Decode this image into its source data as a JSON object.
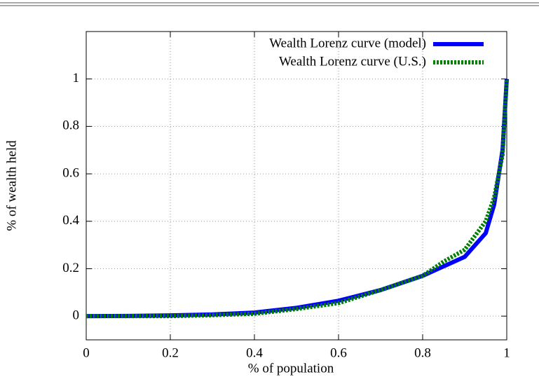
{
  "chart_data": {
    "type": "line",
    "x": [
      0,
      0.1,
      0.2,
      0.3,
      0.4,
      0.5,
      0.6,
      0.7,
      0.8,
      0.85,
      0.9,
      0.95,
      0.97,
      0.99,
      1
    ],
    "series": [
      {
        "name": "Wealth Lorenz curve (model)",
        "color": "#0000ff",
        "style": "solid",
        "values": [
          0,
          0.001,
          0.003,
          0.007,
          0.015,
          0.035,
          0.065,
          0.11,
          0.17,
          0.21,
          0.25,
          0.35,
          0.47,
          0.7,
          1
        ]
      },
      {
        "name": "Wealth Lorenz curve (U.S.)",
        "color": "#008000",
        "style": "dotted",
        "values": [
          0,
          0,
          0,
          0.004,
          0.01,
          0.03,
          0.055,
          0.11,
          0.17,
          0.23,
          0.28,
          0.4,
          0.5,
          0.68,
          1
        ]
      }
    ],
    "xlabel": "% of population",
    "ylabel": "% of wealth held",
    "xlim": [
      0,
      1
    ],
    "ylim": [
      -0.1,
      1.2
    ],
    "xticks": [
      0,
      0.2,
      0.4,
      0.6,
      0.8,
      1
    ],
    "yticks": [
      0,
      0.2,
      0.4,
      0.6,
      0.8,
      1
    ],
    "grid": true,
    "legend": "top-right"
  }
}
